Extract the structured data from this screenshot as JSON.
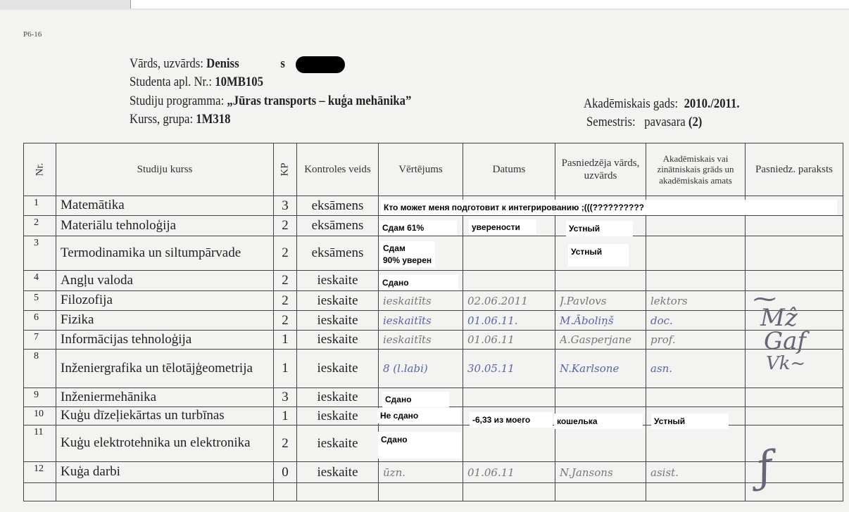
{
  "doc_code": "P6-16",
  "header": {
    "name_label": "Vārds, uzvārds:",
    "name_value": "Deniss",
    "name_tail": "s",
    "id_label": "Studenta apl. Nr.:",
    "id_value": "10MB105",
    "program_label": "Studiju programma:",
    "program_value": "„Jūras transports – kuģa mehānika”",
    "group_label": "Kurss, grupa:",
    "group_value": "1M318",
    "year_label": "Akadēmiskais gads:",
    "year_value": "2010./2011.",
    "semester_label": "Semestris:",
    "semester_value": "pavasara",
    "semester_num": "(2)"
  },
  "columns": [
    "Nr.",
    "Studiju kurss",
    "KP",
    "Kontroles veids",
    "Vērtējums",
    "Datums",
    "Pasniedzēja vārds, uzvārds",
    "Akadēmiskais vai zinātniskais grāds un akadēmiskais amats",
    "Pasniedz. paraksts"
  ],
  "rows": [
    {
      "nr": "1",
      "course": "Matemātika",
      "kp": "3",
      "control": "eksāmens",
      "grade": "",
      "date": "",
      "teacher": "",
      "title": ""
    },
    {
      "nr": "2",
      "course": "Materiālu tehnoloģija",
      "kp": "2",
      "control": "eksāmens",
      "grade": "",
      "date": "",
      "teacher": "",
      "title": ""
    },
    {
      "nr": "3",
      "course": "Termodinamika un siltumpārvade",
      "kp": "2",
      "control": "eksāmens",
      "grade": "",
      "date": "",
      "teacher": "",
      "title": ""
    },
    {
      "nr": "4",
      "course": "Angļu valoda",
      "kp": "2",
      "control": "ieskaite",
      "grade": "",
      "date": "",
      "teacher": "",
      "title": ""
    },
    {
      "nr": "5",
      "course": "Filozofija",
      "kp": "2",
      "control": "ieskaite",
      "grade": "ieskaitīts",
      "date": "02.06.2011",
      "teacher": "J.Pavlovs",
      "title": "lektors"
    },
    {
      "nr": "6",
      "course": "Fizika",
      "kp": "2",
      "control": "ieskaite",
      "grade": "ieskaitīts",
      "date": "01.06.11.",
      "teacher": "M.Āboliņš",
      "title": "doc."
    },
    {
      "nr": "7",
      "course": "Informācijas tehnoloģija",
      "kp": "1",
      "control": "ieskaite",
      "grade": "ieskaitīts",
      "date": "01.06.11",
      "teacher": "A.Gasperjane",
      "title": "prof."
    },
    {
      "nr": "8",
      "course": "Inženiergrafika un tēlotājģeometrija",
      "kp": "1",
      "control": "ieskaite",
      "grade": "8 (l.labi)",
      "date": "30.05.11",
      "teacher": "N.Karlsone",
      "title": "asn."
    },
    {
      "nr": "9",
      "course": "Inženiermehānika",
      "kp": "3",
      "control": "ieskaite",
      "grade": "",
      "date": "",
      "teacher": "",
      "title": ""
    },
    {
      "nr": "10",
      "course": "Kuģu dīzeļiekārtas un turbīnas",
      "kp": "1",
      "control": "ieskaite",
      "grade": "",
      "date": "",
      "teacher": "",
      "title": ""
    },
    {
      "nr": "11",
      "course": "Kuģu elektrotehnika un elektronika",
      "kp": "2",
      "control": "ieskaite",
      "grade": "",
      "date": "",
      "teacher": "",
      "title": ""
    },
    {
      "nr": "12",
      "course": "Kuģa darbi",
      "kp": "0",
      "control": "ieskaite",
      "grade": "ūzn.",
      "date": "01.06.11",
      "teacher": "N.Jansons",
      "title": "asist."
    }
  ],
  "overlays": {
    "r1": "Кто может меня подготовит к интегрированию ;(((??????????",
    "r2a": "Сдам 61%",
    "r2b": "уверености",
    "r2c": "Устный",
    "r3a1": "Сдам",
    "r3a2": "90% уверен",
    "r3c": "Устный",
    "r4": "Сдано",
    "r9": "Сдано",
    "r10a": "Не сдано",
    "r10b": "-6,33 из моего",
    "r10c": "кошелька",
    "r10d": "Устный",
    "r11": "Сдано"
  },
  "colors": {
    "ink_blue": "#5b63a8",
    "paper": "#f3f3f1",
    "grid": "#444444"
  }
}
